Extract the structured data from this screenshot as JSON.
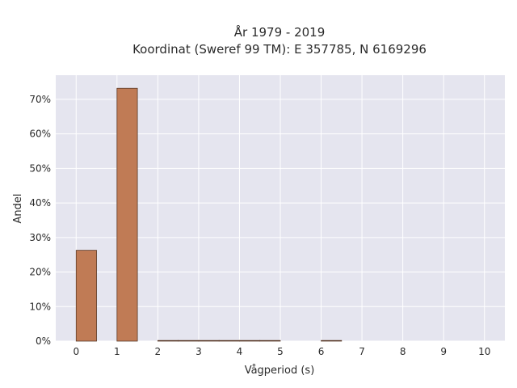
{
  "chart_data": {
    "type": "bar",
    "title_line1": "År 1979 - 2019",
    "title_line2": "Koordinat (Sweref 99 TM): E 357785, N 6169296",
    "xlabel": "Vågperiod (s)",
    "ylabel": "Andel",
    "xlim": [
      -0.5,
      10.5
    ],
    "ylim": [
      0,
      0.77
    ],
    "x_ticks": [
      0,
      1,
      2,
      3,
      4,
      5,
      6,
      7,
      8,
      9,
      10
    ],
    "y_ticks": [
      0,
      0.1,
      0.2,
      0.3,
      0.4,
      0.5,
      0.6,
      0.7
    ],
    "y_tick_labels": [
      "0%",
      "10%",
      "20%",
      "30%",
      "40%",
      "50%",
      "60%",
      "70%"
    ],
    "bin_width": 0.5,
    "bins": [
      {
        "x0": 0.0,
        "x1": 0.5,
        "value": 0.263
      },
      {
        "x0": 1.0,
        "x1": 1.5,
        "value": 0.732
      },
      {
        "x0": 2.0,
        "x1": 2.5,
        "value": 0.0012
      },
      {
        "x0": 2.5,
        "x1": 3.0,
        "value": 0.0008
      },
      {
        "x0": 3.0,
        "x1": 3.5,
        "value": 0.0006
      },
      {
        "x0": 3.5,
        "x1": 4.0,
        "value": 0.0005
      },
      {
        "x0": 4.0,
        "x1": 4.5,
        "value": 0.0004
      },
      {
        "x0": 4.5,
        "x1": 5.0,
        "value": 0.0004
      },
      {
        "x0": 6.0,
        "x1": 6.5,
        "value": 0.0012
      }
    ],
    "grid": true,
    "colors": {
      "bar": "#c07b55",
      "bar_edge": "#5a3a28",
      "plot_bg": "#e5e5ef",
      "grid": "#ffffff"
    }
  }
}
